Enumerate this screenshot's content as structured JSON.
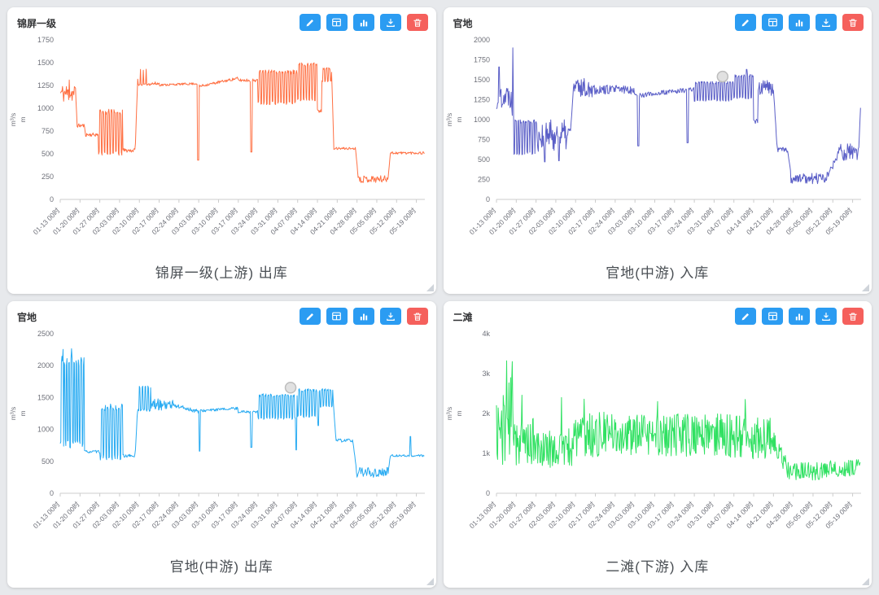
{
  "x_labels": [
    "01-13 00时",
    "01-20 00时",
    "01-27 00时",
    "02-03 00时",
    "02-10 00时",
    "02-17 00时",
    "02-24 00时",
    "03-03 00时",
    "03-10 00时",
    "03-17 00时",
    "03-24 00时",
    "03-31 00时",
    "04-07 00时",
    "04-14 00时",
    "04-21 00时",
    "04-28 00时",
    "05-05 00时",
    "05-12 00时",
    "05-19 00时"
  ],
  "t_max": 129,
  "toolbar": {
    "buttons": [
      {
        "name": "edit-button",
        "icon": "pencil-icon",
        "color": "#2b9cf2"
      },
      {
        "name": "table-button",
        "icon": "table-icon",
        "color": "#2b9cf2"
      },
      {
        "name": "chart-type-button",
        "icon": "bar-chart-icon",
        "color": "#2b9cf2"
      },
      {
        "name": "download-button",
        "icon": "download-icon",
        "color": "#2b9cf2"
      },
      {
        "name": "delete-button",
        "icon": "trash-icon",
        "color": "#f5605c"
      }
    ]
  },
  "chart_data": [
    {
      "type": "line",
      "header": "锦屏一级",
      "caption": "锦屏一级(上游) 出库",
      "color": "#ff7043",
      "seed": 11,
      "y_max": 1750,
      "y_ticks": [
        0,
        250,
        500,
        750,
        1000,
        1250,
        1500,
        1750
      ],
      "y_tick_labels": [
        "0",
        "250",
        "500",
        "750",
        "1000",
        "1250",
        "1500",
        "1750"
      ],
      "axis_names": [
        "m³/s",
        "m"
      ],
      "x_range_days": [
        0,
        129
      ],
      "segments": [
        [
          0,
          5.5,
          "noise",
          1060,
          1270
        ],
        [
          5.5,
          6,
          "ramp",
          1150,
          810,
          20
        ],
        [
          6,
          8.5,
          "flat",
          790,
          830
        ],
        [
          8.5,
          9,
          "ramp",
          810,
          700,
          10
        ],
        [
          9,
          13.5,
          "flat",
          690,
          730
        ],
        [
          13.5,
          22,
          "comb",
          480,
          990,
          1,
          0.45
        ],
        [
          22,
          26.5,
          "flat",
          515,
          560
        ],
        [
          26.5,
          27.5,
          "ramp",
          540,
          1400,
          15
        ],
        [
          27.5,
          31,
          "comb",
          1250,
          1430,
          1,
          0.7
        ],
        [
          31,
          35,
          "flat",
          1250,
          1290
        ],
        [
          35,
          49,
          "ramp",
          1255,
          1272,
          12
        ],
        [
          49,
          63,
          "ramp",
          1240,
          1330,
          15
        ],
        [
          63,
          70,
          "flat",
          1290,
          1325
        ],
        [
          70,
          84,
          "comb",
          1040,
          1420,
          1,
          0.3
        ],
        [
          84,
          91,
          "comb",
          1080,
          1500,
          1,
          0.3
        ],
        [
          91,
          92.5,
          "flat",
          940,
          990
        ],
        [
          92.5,
          96,
          "comb",
          1290,
          1445,
          1,
          0.35
        ],
        [
          96,
          96.8,
          "ramp",
          1400,
          570,
          10
        ],
        [
          96.8,
          104.5,
          "flat",
          545,
          572
        ],
        [
          104.5,
          105.5,
          "ramp",
          550,
          215,
          8
        ],
        [
          105.5,
          116,
          "noise",
          185,
          262
        ],
        [
          116,
          116.8,
          "ramp",
          240,
          500,
          8
        ],
        [
          116.8,
          129,
          "flat",
          495,
          525
        ]
      ],
      "spikes": [
        [
          3.2,
          1310,
          0.3
        ],
        [
          48.8,
          430,
          0.5
        ],
        [
          67.6,
          520,
          0.5
        ]
      ],
      "marker": null
    },
    {
      "type": "line",
      "header": "官地",
      "caption": "官地(中游) 入库",
      "color": "#5b5fc7",
      "seed": 22,
      "y_max": 2000,
      "y_ticks": [
        0,
        250,
        500,
        750,
        1000,
        1250,
        1500,
        1750,
        2000
      ],
      "y_tick_labels": [
        "0",
        "250",
        "500",
        "750",
        "1000",
        "1250",
        "1500",
        "1750",
        "2000"
      ],
      "axis_names": [
        "m³/s",
        "m"
      ],
      "x_range_days": [
        0,
        129
      ],
      "segments": [
        [
          0,
          0.6,
          "ramp",
          1120,
          1300,
          60
        ],
        [
          0.6,
          5.3,
          "noise",
          1150,
          1460
        ],
        [
          5.3,
          6.2,
          "noise",
          1000,
          1310
        ],
        [
          6.2,
          14,
          "comb",
          560,
          1000,
          0.9,
          0.4
        ],
        [
          14,
          26,
          "noise",
          600,
          1000
        ],
        [
          26,
          27.2,
          "ramp",
          760,
          1380,
          30
        ],
        [
          27.2,
          35,
          "noise",
          1280,
          1520
        ],
        [
          35,
          49,
          "noise",
          1320,
          1435
        ],
        [
          49,
          70,
          "ramp",
          1300,
          1380,
          32
        ],
        [
          70,
          84,
          "comb",
          1230,
          1480,
          1,
          0.35
        ],
        [
          84,
          91,
          "comb",
          1260,
          1570,
          1,
          0.35
        ],
        [
          91,
          92.5,
          "flat",
          950,
          1020
        ],
        [
          92.5,
          98,
          "noise",
          1300,
          1500
        ],
        [
          98,
          99.3,
          "ramp",
          1380,
          640,
          20
        ],
        [
          99.3,
          103,
          "flat",
          590,
          655
        ],
        [
          103,
          104.2,
          "ramp",
          620,
          300,
          15
        ],
        [
          104.2,
          117,
          "noise",
          195,
          330
        ],
        [
          117,
          121,
          "ramp",
          300,
          560,
          55
        ],
        [
          121,
          128.2,
          "noise",
          480,
          700
        ],
        [
          128.2,
          129,
          "ramp",
          650,
          1310,
          15
        ]
      ],
      "spikes": [
        [
          0.9,
          1660,
          0.4
        ],
        [
          5.8,
          1900,
          0.35
        ],
        [
          17,
          470,
          0.4
        ],
        [
          22,
          485,
          0.4
        ],
        [
          50.2,
          670,
          0.5
        ],
        [
          67.6,
          710,
          0.5
        ],
        [
          88.5,
          1630,
          0.4
        ]
      ],
      "marker": {
        "t": 80,
        "v": 1540
      }
    },
    {
      "type": "line",
      "header": "官地",
      "caption": "官地(中游) 出库",
      "color": "#29abf2",
      "seed": 33,
      "y_max": 2500,
      "y_ticks": [
        0,
        500,
        1000,
        1500,
        2000,
        2500
      ],
      "y_tick_labels": [
        "0",
        "500",
        "1000",
        "1500",
        "2000",
        "2500"
      ],
      "axis_names": [
        "m³/s",
        "m"
      ],
      "x_range_days": [
        0,
        129
      ],
      "segments": [
        [
          0,
          8.5,
          "comb",
          700,
          2150,
          0.85,
          0.45
        ],
        [
          8.5,
          14,
          "flat",
          630,
          672
        ],
        [
          14,
          22.5,
          "comb",
          520,
          1400,
          1,
          0.45
        ],
        [
          22.5,
          26.5,
          "flat",
          558,
          612
        ],
        [
          26.5,
          27.3,
          "ramp",
          580,
          1300,
          20
        ],
        [
          27.3,
          32,
          "comb",
          1280,
          1680,
          1,
          0.65
        ],
        [
          32,
          40,
          "noise",
          1300,
          1480
        ],
        [
          40,
          49,
          "ramp",
          1380,
          1280,
          35
        ],
        [
          49,
          63,
          "ramp",
          1290,
          1332,
          20
        ],
        [
          63,
          70,
          "flat",
          1258,
          1300
        ],
        [
          70,
          84,
          "comb",
          1150,
          1560,
          1,
          0.35
        ],
        [
          84,
          92,
          "comb",
          1180,
          1640,
          1,
          0.35
        ],
        [
          92,
          96.5,
          "comb",
          1350,
          1640,
          1,
          0.4
        ],
        [
          96.5,
          97.5,
          "ramp",
          1500,
          860,
          15
        ],
        [
          97.5,
          103.5,
          "flat",
          798,
          852
        ],
        [
          103.5,
          104.8,
          "ramp",
          820,
          380,
          12
        ],
        [
          104.8,
          116,
          "noise",
          245,
          405
        ],
        [
          116,
          116.8,
          "ramp",
          320,
          590,
          10
        ],
        [
          116.8,
          129,
          "flat",
          573,
          606
        ]
      ],
      "spikes": [
        [
          1,
          2255,
          0.3
        ],
        [
          4,
          2265,
          0.3
        ],
        [
          49.3,
          660,
          0.5
        ],
        [
          67.6,
          720,
          0.5
        ],
        [
          83.5,
          680,
          0.5
        ],
        [
          91.3,
          1060,
          0.4
        ],
        [
          124,
          890,
          0.4
        ]
      ],
      "marker": {
        "t": 81.5,
        "v": 1655
      }
    },
    {
      "type": "line",
      "header": "二滩",
      "caption": "二滩(下游) 入库",
      "color": "#30e162",
      "seed": 44,
      "y_max": 4000,
      "y_ticks": [
        0,
        1000,
        2000,
        3000,
        4000
      ],
      "y_tick_labels": [
        "0",
        "1k",
        "2k",
        "3k",
        "4k"
      ],
      "axis_names": [
        "m³/s",
        "m"
      ],
      "x_range_days": [
        0,
        129
      ],
      "segments": [
        [
          0,
          3,
          "noise",
          700,
          2500
        ],
        [
          3,
          7,
          "noise",
          800,
          2900
        ],
        [
          7,
          13,
          "noise",
          700,
          1900
        ],
        [
          13,
          27,
          "noise",
          620,
          1620
        ],
        [
          27,
          42,
          "noise",
          860,
          2050
        ],
        [
          42,
          60,
          "noise",
          950,
          1960
        ],
        [
          60,
          84,
          "noise",
          900,
          2010
        ],
        [
          84,
          98,
          "noise",
          860,
          1950
        ],
        [
          98,
          103,
          "ramp",
          1300,
          650,
          250
        ],
        [
          103,
          118,
          "noise",
          330,
          780
        ],
        [
          118,
          127,
          "noise",
          420,
          830
        ],
        [
          127,
          129,
          "noise",
          500,
          900
        ]
      ],
      "spikes": [
        [
          3.6,
          3320,
          0.3
        ],
        [
          5.6,
          3300,
          0.3
        ],
        [
          9,
          2460,
          0.3
        ],
        [
          23,
          2400,
          0.3
        ],
        [
          31,
          2360,
          0.3
        ],
        [
          57,
          2300,
          0.3
        ],
        [
          88,
          2350,
          0.3
        ]
      ],
      "marker": null
    }
  ]
}
